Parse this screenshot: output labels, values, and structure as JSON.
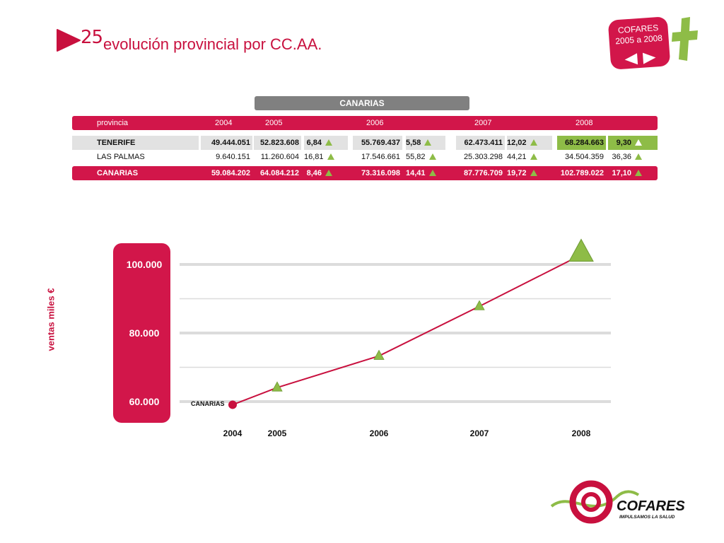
{
  "header": {
    "page_number": "25",
    "title": "evolución provincial por CC.AA."
  },
  "brand_badge": {
    "line1": "COFARES",
    "line2": "2005 a 2008"
  },
  "region": "CANARIAS",
  "table": {
    "corner_label": "provincia",
    "years": [
      "2004",
      "2005",
      "2006",
      "2007",
      "2008"
    ],
    "rows": [
      {
        "name": "TENERIFE",
        "v2004": "49.444.051",
        "v2005": "52.823.608",
        "g2005": "6,84",
        "v2006": "55.769.437",
        "g2006": "5,58",
        "v2007": "62.473.411",
        "g2007": "12,02",
        "v2008": "68.284.663",
        "g2008": "9,30"
      },
      {
        "name": "LAS PALMAS",
        "v2004": "9.640.151",
        "v2005": "11.260.604",
        "g2005": "16,81",
        "v2006": "17.546.661",
        "g2006": "55,82",
        "v2007": "25.303.298",
        "g2007": "44,21",
        "v2008": "34.504.359",
        "g2008": "36,36"
      },
      {
        "name": "CANARIAS",
        "v2004": "59.084.202",
        "v2005": "64.084.212",
        "g2005": "8,46",
        "v2006": "73.316.098",
        "g2006": "14,41",
        "v2007": "87.776.709",
        "g2007": "19,72",
        "v2008": "102.789.022",
        "g2008": "17,10"
      }
    ]
  },
  "chart_data": {
    "type": "line",
    "title": "",
    "xlabel": "",
    "ylabel": "ventas miles €",
    "x": [
      "2004",
      "2005",
      "2006",
      "2007",
      "2008"
    ],
    "series": [
      {
        "name": "CANARIAS",
        "values": [
          59084.202,
          64084.212,
          73316.098,
          87776.709,
          102789.022
        ]
      }
    ],
    "yticks": [
      60000,
      80000,
      100000
    ],
    "ytick_labels": [
      "60.000",
      "80.000",
      "100.000"
    ],
    "ylim": [
      60000,
      100000
    ],
    "grid": true,
    "colors": {
      "line": "#c8103e",
      "marker": "#8ebc47",
      "panel": "#d2164a",
      "grid": "#dcdcdc"
    }
  },
  "logo": {
    "name": "COFARES",
    "tagline": "IMPULSAMOS LA SALUD"
  }
}
